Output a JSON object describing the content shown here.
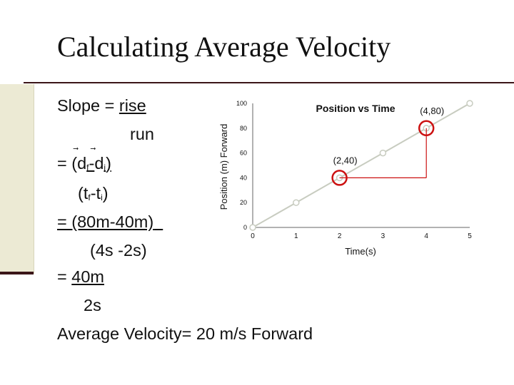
{
  "slide": {
    "title": "Calculating Average Velocity",
    "slope_label": "Slope = ",
    "rise": "rise",
    "run": "run",
    "eq_prefix": "= (",
    "d": "d",
    "f": "f",
    "i": "i",
    "dash": "-",
    "close_paren": ")",
    "t_open": "(t",
    "t_mid": "-t",
    "vec_arrow": "⃗",
    "numerator_values": "= (80m-40m)",
    "denominator_values": "(4s -2s)",
    "result_prefix": "= ",
    "result_distance": "40m",
    "result_time": "2s",
    "average_velocity": "Average Velocity=  20 m/s Forward"
  },
  "chart_data": {
    "type": "line",
    "title": "Position vs Time",
    "xlabel": "Time(s)",
    "ylabel": "Position (m) Forward",
    "x": [
      0,
      1,
      2,
      3,
      4,
      5
    ],
    "y": [
      0,
      20,
      40,
      60,
      80,
      100
    ],
    "xlim": [
      0,
      5
    ],
    "ylim": [
      0,
      100
    ],
    "xticks": [
      0,
      1,
      2,
      3,
      4,
      5
    ],
    "yticks": [
      0,
      20,
      40,
      60,
      80,
      100
    ],
    "grid": false,
    "line_color": "#c8ccc0",
    "annotations": [
      {
        "text": "(2,40)",
        "x": 2,
        "y": 40
      },
      {
        "text": "(4,80)",
        "x": 4,
        "y": 80
      }
    ],
    "highlight_color": "#cc1111"
  }
}
